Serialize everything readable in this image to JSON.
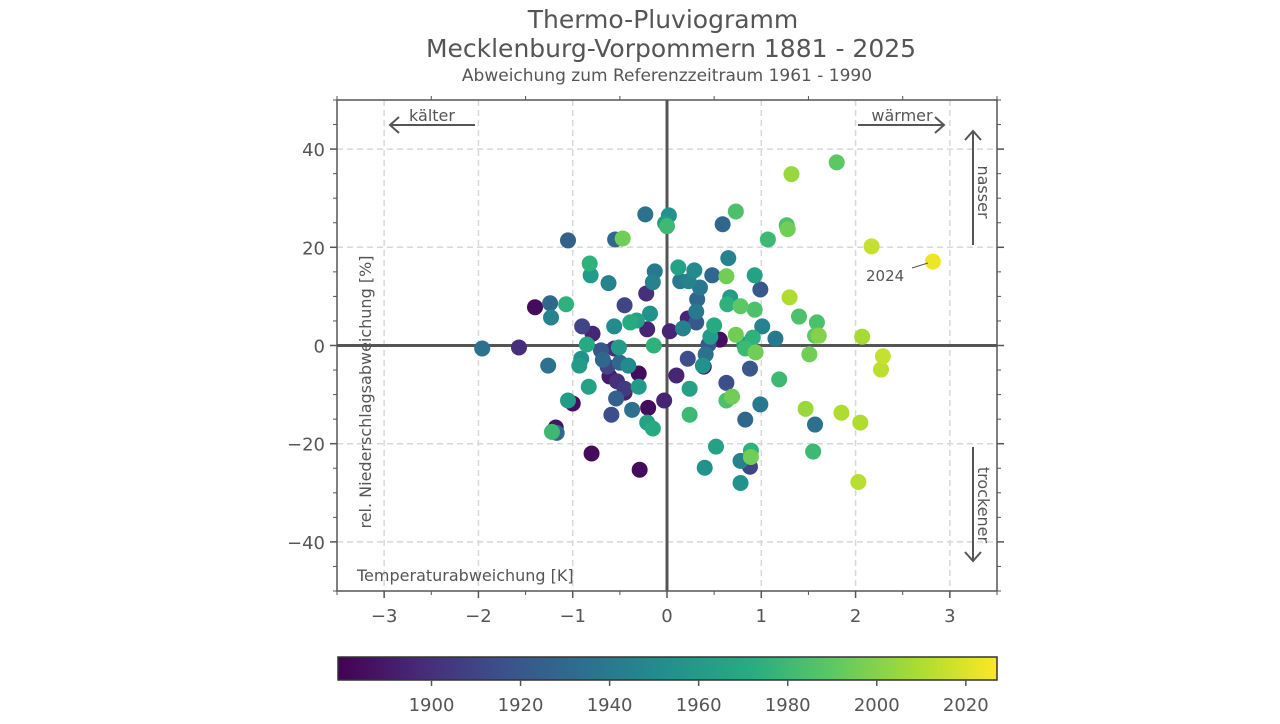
{
  "chart_data": {
    "type": "scatter",
    "title": "Thermo-Pluviogramm",
    "title2": "Mecklenburg-Vorpommern 1881 - 2025",
    "subtitle": "Abweichung zum Referenzzeitraum 1961 - 1990",
    "xlabel": "Temperaturabweichung [K]",
    "ylabel": "rel. Niederschlagsabweichung [%]",
    "xlim": [
      -3.5,
      3.5
    ],
    "ylim": [
      -50,
      50
    ],
    "xticks": [
      -3,
      -2,
      -1,
      0,
      1,
      2,
      3
    ],
    "yticks": [
      -40,
      -20,
      0,
      20,
      40
    ],
    "xtick_labels": [
      "−3",
      "−2",
      "−1",
      "0",
      "1",
      "2",
      "3"
    ],
    "ytick_labels": [
      "−40",
      "−20",
      "0",
      "20",
      "40"
    ],
    "grid": true,
    "colormap": "viridis",
    "colorbar": {
      "range": [
        1879,
        2027
      ],
      "ticks": [
        1900,
        1920,
        1940,
        1960,
        1980,
        2000,
        2020
      ],
      "tick_labels": [
        "1900",
        "1920",
        "1940",
        "1960",
        "1980",
        "2000",
        "2020"
      ]
    },
    "annotations": {
      "colder": "kälter",
      "warmer": "wärmer",
      "wetter": "nasser",
      "drier": "trockener",
      "highlight": "2024"
    },
    "points": [
      [
        -1.96,
        -0.6,
        1935
      ],
      [
        -1.57,
        -0.4,
        1900
      ],
      [
        -1.4,
        7.8,
        1884
      ],
      [
        -1.24,
        8.6,
        1930
      ],
      [
        -1.23,
        5.7,
        1945
      ],
      [
        -1.07,
        8.4,
        1975
      ],
      [
        -1.05,
        21.4,
        1925
      ],
      [
        -1.26,
        -4.1,
        1935
      ],
      [
        -1.05,
        -11.2,
        1960
      ],
      [
        -1.0,
        -11.8,
        1885
      ],
      [
        -1.18,
        -16.7,
        1888
      ],
      [
        -1.17,
        -17.8,
        1930
      ],
      [
        -1.22,
        -17.6,
        1980
      ],
      [
        -0.8,
        -22.0,
        1884
      ],
      [
        -0.9,
        3.9,
        1910
      ],
      [
        -0.79,
        2.4,
        1895
      ],
      [
        -0.82,
        16.7,
        1975
      ],
      [
        -0.81,
        14.3,
        1960
      ],
      [
        -0.62,
        12.7,
        1945
      ],
      [
        -0.85,
        0.2,
        1970
      ],
      [
        -0.91,
        -2.7,
        1955
      ],
      [
        -0.93,
        -4.1,
        1960
      ],
      [
        -0.83,
        -8.4,
        1965
      ],
      [
        -0.55,
        21.6,
        1930
      ],
      [
        -0.47,
        21.8,
        1995
      ],
      [
        -0.45,
        8.2,
        1910
      ],
      [
        -0.56,
        3.9,
        1950
      ],
      [
        -0.39,
        4.7,
        1970
      ],
      [
        -0.32,
        5.1,
        1965
      ],
      [
        -0.18,
        6.5,
        1955
      ],
      [
        -0.22,
        10.6,
        1900
      ],
      [
        -0.15,
        12.9,
        1945
      ],
      [
        -0.13,
        15.1,
        1940
      ],
      [
        -0.23,
        26.7,
        1935
      ],
      [
        0.02,
        26.5,
        1955
      ],
      [
        -0.02,
        24.9,
        1960
      ],
      [
        0.0,
        24.3,
        1980
      ],
      [
        -0.21,
        3.3,
        1895
      ],
      [
        0.03,
        2.9,
        1895
      ],
      [
        -0.14,
        0.0,
        1975
      ],
      [
        -0.7,
        -1.0,
        1920
      ],
      [
        -0.56,
        -0.6,
        1900
      ],
      [
        -0.51,
        -0.4,
        1960
      ],
      [
        -0.68,
        -2.9,
        1930
      ],
      [
        -0.63,
        -4.3,
        1910
      ],
      [
        -0.5,
        -3.5,
        1930
      ],
      [
        -0.41,
        -4.1,
        1950
      ],
      [
        -0.61,
        -6.3,
        1890
      ],
      [
        -0.53,
        -7.3,
        1900
      ],
      [
        -0.45,
        -8.8,
        1905
      ],
      [
        -0.54,
        -10.8,
        1925
      ],
      [
        -0.59,
        -14.1,
        1915
      ],
      [
        -0.37,
        -13.1,
        1935
      ],
      [
        -0.3,
        -5.7,
        1884
      ],
      [
        -0.45,
        -9.6,
        1893
      ],
      [
        -0.2,
        -12.7,
        1884
      ],
      [
        -0.3,
        -8.4,
        1960
      ],
      [
        -0.21,
        -15.7,
        1965
      ],
      [
        -0.15,
        -16.9,
        1970
      ],
      [
        -0.29,
        -25.3,
        1884
      ],
      [
        -0.03,
        -11.2,
        1895
      ],
      [
        0.1,
        -6.1,
        1895
      ],
      [
        0.24,
        -8.8,
        1965
      ],
      [
        0.24,
        -14.1,
        1980
      ],
      [
        0.39,
        -4.3,
        1890
      ],
      [
        0.38,
        -4.1,
        1955
      ],
      [
        0.22,
        -2.7,
        1915
      ],
      [
        0.41,
        -1.8,
        1935
      ],
      [
        0.44,
        0.2,
        1920
      ],
      [
        0.22,
        5.5,
        1895
      ],
      [
        0.17,
        3.5,
        1945
      ],
      [
        0.31,
        4.7,
        1920
      ],
      [
        0.31,
        6.9,
        1940
      ],
      [
        0.14,
        13.1,
        1940
      ],
      [
        0.12,
        15.9,
        1965
      ],
      [
        0.23,
        13.1,
        1945
      ],
      [
        0.29,
        15.3,
        1950
      ],
      [
        0.35,
        11.8,
        1940
      ],
      [
        0.32,
        9.4,
        1930
      ],
      [
        0.46,
        1.8,
        1960
      ],
      [
        0.5,
        4.1,
        1970
      ],
      [
        0.56,
        1.2,
        1885
      ],
      [
        0.48,
        14.3,
        1930
      ],
      [
        0.59,
        24.7,
        1930
      ],
      [
        0.73,
        27.3,
        1985
      ],
      [
        0.63,
        14.1,
        1995
      ],
      [
        0.65,
        17.8,
        1945
      ],
      [
        0.64,
        8.4,
        1975
      ],
      [
        0.67,
        9.8,
        1960
      ],
      [
        0.63,
        -7.6,
        1915
      ],
      [
        0.63,
        -11.2,
        1985
      ],
      [
        0.69,
        -10.4,
        1995
      ],
      [
        0.78,
        8.0,
        1990
      ],
      [
        0.93,
        7.3,
        1985
      ],
      [
        0.73,
        2.2,
        1995
      ],
      [
        0.82,
        0.2,
        1965
      ],
      [
        0.83,
        -0.6,
        1980
      ],
      [
        0.91,
        1.6,
        1975
      ],
      [
        0.94,
        -1.4,
        1995
      ],
      [
        0.88,
        -4.7,
        1920
      ],
      [
        0.83,
        -15.1,
        1930
      ],
      [
        0.52,
        -20.6,
        1965
      ],
      [
        0.4,
        -24.9,
        1955
      ],
      [
        0.78,
        -23.5,
        1945
      ],
      [
        0.88,
        -24.7,
        1910
      ],
      [
        0.89,
        -21.4,
        1975
      ],
      [
        0.89,
        -22.7,
        1995
      ],
      [
        0.78,
        -28.0,
        1955
      ],
      [
        0.99,
        -12.0,
        1940
      ],
      [
        1.01,
        3.9,
        1945
      ],
      [
        0.99,
        11.4,
        1920
      ],
      [
        0.93,
        14.3,
        1965
      ],
      [
        1.07,
        21.6,
        1980
      ],
      [
        1.15,
        1.4,
        1940
      ],
      [
        1.19,
        -6.9,
        1980
      ],
      [
        1.27,
        24.5,
        1985
      ],
      [
        1.28,
        23.7,
        1995
      ],
      [
        1.32,
        34.9,
        2005
      ],
      [
        1.3,
        9.8,
        2010
      ],
      [
        1.4,
        5.9,
        1985
      ],
      [
        1.59,
        4.7,
        1985
      ],
      [
        1.51,
        -1.8,
        1995
      ],
      [
        1.57,
        2.0,
        1990
      ],
      [
        1.61,
        2.0,
        2000
      ],
      [
        1.47,
        -12.9,
        2005
      ],
      [
        1.57,
        -16.1,
        1935
      ],
      [
        1.55,
        -21.6,
        1980
      ],
      [
        1.8,
        37.3,
        1990
      ],
      [
        2.17,
        20.2,
        2015
      ],
      [
        2.82,
        17.1,
        2024
      ],
      [
        2.07,
        1.8,
        2008
      ],
      [
        1.85,
        -13.7,
        2010
      ],
      [
        2.05,
        -15.7,
        2010
      ],
      [
        2.29,
        -2.2,
        2015
      ],
      [
        2.27,
        -4.9,
        2013
      ],
      [
        2.03,
        -27.8,
        2012
      ]
    ]
  }
}
